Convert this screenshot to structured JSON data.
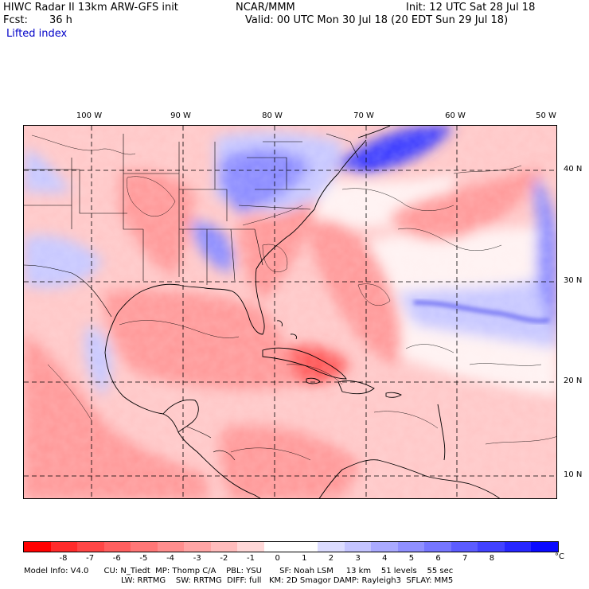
{
  "header": {
    "title": "HIWC Radar II 13km ARW-GFS init",
    "org": "NCAR/MMM",
    "init": "Init: 12 UTC Sat 28 Jul 18",
    "fcst_label": "Fcst:",
    "fcst_value": "36 h",
    "valid": "Valid: 00 UTC Mon 30 Jul 18 (20 EDT Sun 29 Jul 18)",
    "field": "Lifted index"
  },
  "map": {
    "lon_labels": [
      "100 W",
      "90 W",
      "80 W",
      "70 W",
      "60 W",
      "50 W"
    ],
    "lat_labels": [
      "40 N",
      "30 N",
      "20 N",
      "10 N"
    ],
    "field_colors": {
      "strong_unstable": "#ff5a5a",
      "moderate_unstable": "#ff9a9a",
      "weak_unstable": "#ffc8c8",
      "neutral": "#fff2f2",
      "weak_stable": "#c8c8ff",
      "moderate_stable": "#8c8cff",
      "strong_stable": "#3c3cff"
    }
  },
  "colorbar": {
    "labels": [
      "-8",
      "-7",
      "-6",
      "-5",
      "-4",
      "-3",
      "-2",
      "-1",
      "0",
      "1",
      "2",
      "3",
      "4",
      "5",
      "6",
      "7",
      "8"
    ],
    "unit": "°C",
    "colors": [
      "#ff0000",
      "#ff2b2b",
      "#ff4646",
      "#ff5f5f",
      "#ff7777",
      "#ff8e8e",
      "#ffa5a5",
      "#ffbcbc",
      "#ffd8d8",
      "#ffffff",
      "#ffffff",
      "#dcdcff",
      "#c4c4ff",
      "#aaaaff",
      "#9090ff",
      "#7676ff",
      "#5c5cff",
      "#4242ff",
      "#2626ff",
      "#0a0aff"
    ]
  },
  "footer": {
    "line1": "Model Info: V4.0      CU: N_Tiedt  MP: Thomp C/A    PBL: YSU       SF: Noah LSM     13 km    51 levels    55 sec",
    "line2": "LW: RRTMG    SW: RRTMG  DIFF: full   KM: 2D Smagor DAMP: Rayleigh3  SFLAY: MM5"
  }
}
